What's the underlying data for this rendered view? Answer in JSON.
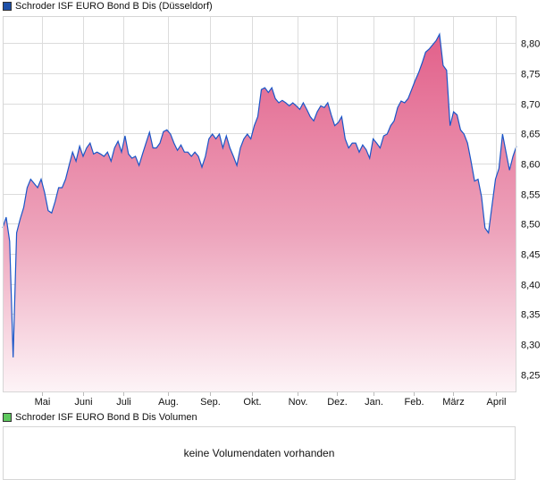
{
  "chart_data": {
    "type": "area",
    "title": "Schroder ISF EURO Bond B Dis (Düsseldorf)",
    "xlabel": "",
    "ylabel": "",
    "ylim": [
      8.22,
      8.845
    ],
    "y_ticks": [
      "8,25",
      "8,30",
      "8,35",
      "8,40",
      "8,45",
      "8,50",
      "8,55",
      "8,60",
      "8,65",
      "8,70",
      "8,75",
      "8,80"
    ],
    "y_tick_values": [
      8.25,
      8.3,
      8.35,
      8.4,
      8.45,
      8.5,
      8.55,
      8.6,
      8.65,
      8.7,
      8.75,
      8.8
    ],
    "x_ticks": [
      "Mai",
      "Juni",
      "Juli",
      "Aug.",
      "Sep.",
      "Okt.",
      "Nov.",
      "Dez.",
      "Jan.",
      "Feb.",
      "März",
      "April"
    ],
    "grid": true,
    "legend": "top-left",
    "series": [
      {
        "name": "Schroder ISF EURO Bond B Dis (Düsseldorf)",
        "color": "#1a56c8",
        "fill_top": "#e2608a",
        "values": [
          8.493,
          8.511,
          8.471,
          8.278,
          8.485,
          8.508,
          8.527,
          8.56,
          8.574,
          8.567,
          8.56,
          8.574,
          8.552,
          8.522,
          8.518,
          8.537,
          8.56,
          8.56,
          8.574,
          8.597,
          8.619,
          8.604,
          8.629,
          8.612,
          8.626,
          8.634,
          8.616,
          8.619,
          8.616,
          8.612,
          8.619,
          8.604,
          8.626,
          8.637,
          8.619,
          8.646,
          8.616,
          8.609,
          8.612,
          8.597,
          8.616,
          8.634,
          8.652,
          8.626,
          8.626,
          8.634,
          8.653,
          8.656,
          8.649,
          8.634,
          8.622,
          8.631,
          8.619,
          8.619,
          8.612,
          8.619,
          8.612,
          8.594,
          8.612,
          8.641,
          8.649,
          8.641,
          8.649,
          8.626,
          8.646,
          8.626,
          8.612,
          8.597,
          8.626,
          8.641,
          8.649,
          8.641,
          8.663,
          8.678,
          8.723,
          8.726,
          8.718,
          8.726,
          8.708,
          8.701,
          8.705,
          8.701,
          8.696,
          8.701,
          8.696,
          8.69,
          8.701,
          8.69,
          8.678,
          8.671,
          8.686,
          8.696,
          8.693,
          8.701,
          8.681,
          8.663,
          8.668,
          8.678,
          8.641,
          8.626,
          8.634,
          8.634,
          8.619,
          8.631,
          8.623,
          8.609,
          8.641,
          8.634,
          8.626,
          8.646,
          8.649,
          8.663,
          8.671,
          8.693,
          8.704,
          8.701,
          8.708,
          8.723,
          8.738,
          8.751,
          8.767,
          8.785,
          8.79,
          8.797,
          8.804,
          8.815,
          8.763,
          8.755,
          8.663,
          8.686,
          8.681,
          8.656,
          8.649,
          8.634,
          8.604,
          8.571,
          8.574,
          8.545,
          8.493,
          8.485,
          8.53,
          8.574,
          8.592,
          8.649,
          8.619,
          8.589,
          8.612,
          8.629
        ]
      }
    ]
  },
  "volume": {
    "legend": "Schroder ISF EURO Bond B Dis Volumen",
    "legend_color": "#5ec95e",
    "empty_message": "keine Volumendaten vorhanden"
  },
  "price_legend_color": "#1c4fa8"
}
